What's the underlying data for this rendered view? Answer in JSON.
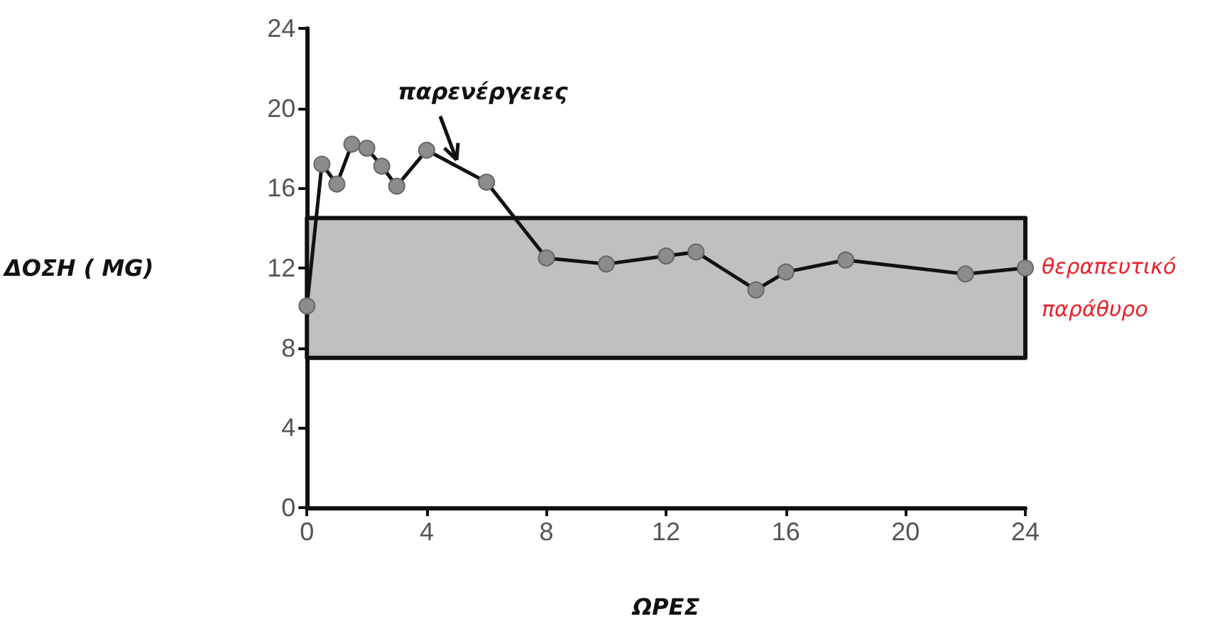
{
  "chart_data": {
    "type": "line",
    "xlabel": "ΩΡΕΣ",
    "ylabel": "ΔΟΣΗ ( MG)",
    "x": [
      0,
      0.5,
      1,
      1.5,
      2,
      2.5,
      3,
      4,
      6,
      8,
      10,
      12,
      13,
      15,
      16,
      18,
      22,
      24
    ],
    "series": [
      {
        "color": "#111111",
        "values": [
          10.1,
          17.2,
          16.2,
          18.2,
          18,
          17.1,
          16.1,
          17.9,
          16.3,
          12.5,
          12.2,
          12.6,
          12.8,
          10.9,
          11.8,
          12.4,
          11.7,
          12
        ]
      }
    ],
    "marker": "circle",
    "line_style": "solid",
    "grid": false,
    "xlim": [
      0,
      24
    ],
    "xticks": [
      0,
      4,
      8,
      12,
      16,
      20,
      24
    ],
    "ylim": [
      0,
      24
    ],
    "yticks": [
      0,
      4,
      8,
      12,
      16,
      20,
      24
    ],
    "bands": [
      {
        "axis": "y",
        "from": 7.5,
        "to": 14.5,
        "label": "θεραπευτικό παράθυρο",
        "color": "#c0c0c0"
      }
    ],
    "annotations": [
      {
        "text": "παρενέργειες",
        "x": 5,
        "y": 17.2
      }
    ]
  }
}
